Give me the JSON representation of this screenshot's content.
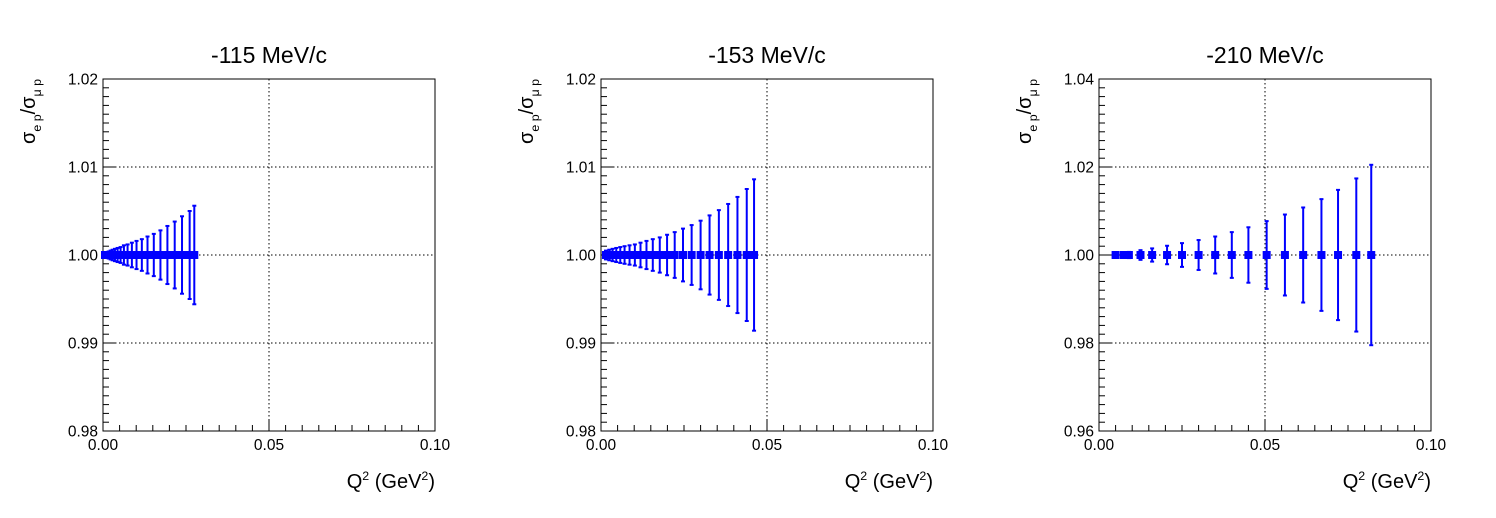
{
  "chart_data": [
    {
      "type": "scatter",
      "title": "-115 MeV/c",
      "xlabel": "Q<sup>2</sup> (GeV<sup>2</sup>)",
      "ylabel": "σ<sub>e p</sub>/σ<sub>μ p</sub>",
      "xlim": [
        0,
        0.1
      ],
      "ylim": [
        0.98,
        1.02
      ],
      "x_ticks": [
        "0.00",
        "0.05",
        "0.10"
      ],
      "y_ticks": [
        "0.98",
        "0.99",
        "1.00",
        "1.01",
        "1.02"
      ],
      "grid": true,
      "marker_color": "#0000ff",
      "series": [
        {
          "x": [
            0.0006,
            0.0011,
            0.0017,
            0.0023,
            0.0029,
            0.0036,
            0.0044,
            0.0053,
            0.0063,
            0.0074,
            0.0087,
            0.0101,
            0.0117,
            0.0134,
            0.0153,
            0.0173,
            0.0194,
            0.0216,
            0.0238,
            0.0261,
            0.0275
          ],
          "y": [
            1.0,
            1.0,
            1.0,
            1.0,
            1.0,
            1.0,
            1.0,
            1.0,
            1.0,
            1.0,
            1.0,
            1.0,
            1.0,
            1.0,
            1.0,
            1.0,
            1.0,
            1.0,
            1.0,
            1.0,
            1.0
          ],
          "err": [
            0.0002,
            0.0003,
            0.0004,
            0.0005,
            0.0006,
            0.0007,
            0.0008,
            0.0009,
            0.0011,
            0.0012,
            0.0014,
            0.0016,
            0.0018,
            0.0021,
            0.0024,
            0.0028,
            0.0033,
            0.0038,
            0.0044,
            0.005,
            0.0056
          ]
        }
      ]
    },
    {
      "type": "scatter",
      "title": "-153 MeV/c",
      "xlabel": "Q<sup>2</sup> (GeV<sup>2</sup>)",
      "ylabel": "σ<sub>e p</sub>/σ<sub>μ p</sub>",
      "xlim": [
        0,
        0.1
      ],
      "ylim": [
        0.98,
        1.02
      ],
      "x_ticks": [
        "0.00",
        "0.05",
        "0.10"
      ],
      "y_ticks": [
        "0.98",
        "0.99",
        "1.00",
        "1.01",
        "1.02"
      ],
      "grid": true,
      "marker_color": "#0000ff",
      "series": [
        {
          "x": [
            0.0015,
            0.0025,
            0.0035,
            0.0046,
            0.0058,
            0.0071,
            0.0086,
            0.0102,
            0.0119,
            0.0137,
            0.0156,
            0.0177,
            0.0199,
            0.0222,
            0.0247,
            0.0273,
            0.03,
            0.0327,
            0.0355,
            0.0383,
            0.0411,
            0.0439,
            0.0461
          ],
          "y": [
            1.0,
            1.0,
            1.0,
            1.0,
            1.0,
            1.0,
            1.0,
            1.0,
            1.0,
            1.0,
            1.0,
            1.0,
            1.0,
            1.0,
            1.0,
            1.0,
            1.0,
            1.0,
            1.0,
            1.0,
            1.0,
            1.0,
            1.0
          ],
          "err": [
            0.0005,
            0.0006,
            0.0007,
            0.0008,
            0.0009,
            0.001,
            0.0011,
            0.0012,
            0.0014,
            0.0016,
            0.0018,
            0.002,
            0.0023,
            0.0026,
            0.003,
            0.0034,
            0.0039,
            0.0045,
            0.0051,
            0.0058,
            0.0066,
            0.0075,
            0.0086
          ]
        }
      ]
    },
    {
      "type": "scatter",
      "title": "-210 MeV/c",
      "xlabel": "Q<sup>2</sup> (GeV<sup>2</sup>)",
      "ylabel": "σ<sub>e p</sub>/σ<sub>μ p</sub>",
      "xlim": [
        0,
        0.1
      ],
      "ylim": [
        0.96,
        1.04
      ],
      "x_ticks": [
        "0.00",
        "0.05",
        "0.10"
      ],
      "y_ticks": [
        "0.96",
        "0.98",
        "1.00",
        "1.02",
        "1.04"
      ],
      "grid": true,
      "marker_color": "#0000ff",
      "series": [
        {
          "x": [
            0.005,
            0.0075,
            0.009,
            0.0125,
            0.016,
            0.0205,
            0.025,
            0.03,
            0.035,
            0.04,
            0.045,
            0.0505,
            0.056,
            0.0615,
            0.067,
            0.072,
            0.0775,
            0.082
          ],
          "y": [
            1.0,
            1.0,
            1.0,
            1.0,
            1.0,
            1.0,
            1.0,
            1.0,
            1.0,
            1.0,
            1.0,
            1.0,
            1.0,
            1.0,
            1.0,
            1.0,
            1.0,
            1.0
          ],
          "err": [
            0.0003,
            0.0005,
            0.0007,
            0.0011,
            0.0015,
            0.0021,
            0.0027,
            0.0034,
            0.0042,
            0.0052,
            0.0063,
            0.0077,
            0.0092,
            0.0108,
            0.0127,
            0.0148,
            0.0174,
            0.0205
          ]
        }
      ]
    }
  ]
}
